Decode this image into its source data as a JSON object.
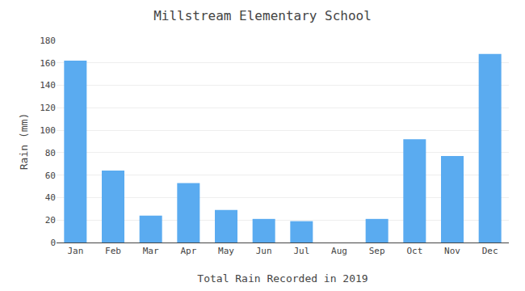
{
  "chart_data": {
    "type": "bar",
    "title": "Millstream Elementary School",
    "xlabel": "Total Rain Recorded in 2019",
    "ylabel": "Rain (mm)",
    "categories": [
      "Jan",
      "Feb",
      "Mar",
      "Apr",
      "May",
      "Jun",
      "Jul",
      "Aug",
      "Sep",
      "Oct",
      "Nov",
      "Dec"
    ],
    "values": [
      162,
      64,
      24,
      53,
      29,
      21,
      19,
      0,
      21,
      92,
      77,
      168
    ],
    "color": "#5aabf0",
    "ylim": [
      0,
      180
    ],
    "yticks": [
      0,
      20,
      40,
      60,
      80,
      100,
      120,
      140,
      160,
      180
    ],
    "grid": true
  }
}
